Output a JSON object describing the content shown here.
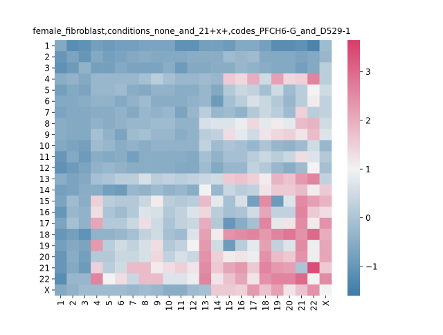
{
  "chart_data": {
    "type": "heatmap",
    "title": "female_fibroblast,conditions_none_and_21+x+,codes_PFCH6-G_and_D529-1",
    "xlabel": "",
    "ylabel": "",
    "x_categories": [
      "1",
      "2",
      "3",
      "4",
      "5",
      "6",
      "7",
      "8",
      "9",
      "10",
      "11",
      "12",
      "13",
      "14",
      "15",
      "16",
      "17",
      "18",
      "19",
      "20",
      "21",
      "22",
      "X"
    ],
    "y_categories": [
      "1",
      "2",
      "3",
      "4",
      "5",
      "6",
      "7",
      "8",
      "9",
      "10",
      "11",
      "12",
      "13",
      "14",
      "15",
      "16",
      "17",
      "18",
      "19",
      "20",
      "21",
      "22",
      "X"
    ],
    "colorbar": {
      "min": -1.6,
      "max": 3.65,
      "ticks": [
        -1,
        0,
        1,
        2,
        3
      ]
    },
    "colormap": {
      "low": "#3d7ba6",
      "mid": "#f2f2f2",
      "high": "#d63c6a"
    },
    "values": [
      [
        -0.6,
        -1.2,
        -1.1,
        -0.8,
        -0.9,
        -0.8,
        -0.8,
        -0.7,
        -0.7,
        -0.7,
        -1.1,
        -1.1,
        -0.8,
        -0.8,
        -0.9,
        -0.6,
        -0.6,
        -0.8,
        -1.2,
        -1.2,
        -1.1,
        -1.4,
        -0.2
      ],
      [
        -1.0,
        -0.7,
        -1.0,
        -0.6,
        -0.8,
        -0.7,
        -0.6,
        -0.5,
        -0.6,
        -0.6,
        -0.6,
        -0.5,
        -0.5,
        -0.5,
        -0.2,
        -0.3,
        -0.2,
        -0.6,
        -0.6,
        -0.6,
        -0.7,
        -0.6,
        -0.3
      ],
      [
        -1.1,
        -0.9,
        -0.4,
        -0.8,
        -0.8,
        -0.6,
        -0.7,
        -0.7,
        -0.7,
        -0.5,
        -0.9,
        -0.6,
        -0.6,
        -0.5,
        -0.5,
        -0.3,
        -0.4,
        -0.5,
        -0.6,
        -0.6,
        -0.8,
        -0.6,
        0.2
      ],
      [
        -0.5,
        -0.4,
        -0.6,
        -0.3,
        -0.3,
        -0.3,
        -0.3,
        -0.1,
        0.2,
        -0.1,
        -0.3,
        -0.3,
        -0.2,
        -0.3,
        1.6,
        1.4,
        2.0,
        0.5,
        2.2,
        1.4,
        1.5,
        2.6,
        0.2
      ],
      [
        -0.8,
        -0.6,
        -0.7,
        -0.3,
        -0.3,
        -0.2,
        -0.5,
        -0.6,
        -0.4,
        -0.4,
        -0.5,
        -0.5,
        -0.3,
        -0.6,
        0.1,
        0.4,
        0.3,
        -0.1,
        0.5,
        -0.2,
        0.2,
        1.0,
        0.5
      ],
      [
        -0.6,
        -0.6,
        -0.5,
        -0.4,
        -0.4,
        -0.6,
        -0.4,
        -0.2,
        -0.5,
        -0.5,
        -0.5,
        -0.4,
        -0.3,
        -0.9,
        -0.1,
        0.2,
        0.6,
        0.4,
        0.1,
        -0.3,
        0.2,
        1.1,
        0.3
      ],
      [
        -0.7,
        -0.6,
        -0.6,
        -0.5,
        -0.5,
        -0.4,
        -0.6,
        -0.3,
        -0.4,
        -0.3,
        -0.7,
        -0.3,
        0.2,
        -0.3,
        -0.2,
        -0.4,
        0.1,
        0.4,
        0.2,
        -0.2,
        1.5,
        0.2,
        0.3
      ],
      [
        -0.5,
        -0.6,
        -0.6,
        -0.4,
        -0.5,
        -0.4,
        -0.3,
        -0.3,
        -0.2,
        -0.2,
        -0.4,
        -0.4,
        0.6,
        0.7,
        0.7,
        0.9,
        1.4,
        0.8,
        1.1,
        0.8,
        1.8,
        1.9,
        0.5
      ],
      [
        -0.5,
        -0.6,
        -0.6,
        -0.1,
        -0.4,
        -0.7,
        -0.2,
        -0.1,
        -0.3,
        -0.3,
        -0.5,
        -0.4,
        0.2,
        0.3,
        1.3,
        0.8,
        0.5,
        1.2,
        1.4,
        1.5,
        1.2,
        1.8,
        0.7
      ],
      [
        -0.6,
        -0.7,
        -0.8,
        -0.2,
        -0.3,
        -0.5,
        -0.4,
        -0.5,
        -0.4,
        -0.4,
        -0.4,
        -0.4,
        0.3,
        -0.2,
        0.0,
        -0.1,
        -0.3,
        0.0,
        -0.3,
        -0.4,
        -0.2,
        0.5,
        -0.3
      ],
      [
        -1.0,
        -0.6,
        -0.9,
        -0.5,
        -0.6,
        -0.5,
        -0.8,
        -0.5,
        -0.5,
        -0.5,
        -0.5,
        -0.6,
        -0.1,
        -0.4,
        -0.1,
        -0.1,
        0.2,
        0.4,
        0.2,
        0.4,
        1.3,
        0.7,
        0.1
      ],
      [
        -1.1,
        -0.9,
        -0.7,
        -0.4,
        -0.3,
        -0.4,
        -0.5,
        -0.5,
        -0.5,
        -0.5,
        -0.6,
        -0.6,
        -0.2,
        -0.6,
        -0.3,
        -0.3,
        0.3,
        0.1,
        -0.3,
        -0.5,
        -0.2,
        1.0,
        -0.1
      ],
      [
        -0.5,
        -0.7,
        -0.6,
        -0.1,
        0.0,
        0.2,
        0.2,
        0.6,
        0.2,
        0.3,
        0.2,
        0.3,
        0.4,
        0.5,
        1.6,
        1.7,
        1.5,
        1.1,
        1.9,
        1.7,
        2.3,
        2.6,
        0.3
      ],
      [
        -0.8,
        -0.7,
        -0.5,
        -0.5,
        -0.8,
        -0.9,
        -0.3,
        -0.4,
        -0.2,
        -0.4,
        -0.3,
        -0.5,
        1.0,
        -0.3,
        0.4,
        0.2,
        0.3,
        1.2,
        1.6,
        1.6,
        1.8,
        1.1,
        1.6
      ],
      [
        -0.7,
        -0.2,
        -0.5,
        1.5,
        0.2,
        0.1,
        0.1,
        0.4,
        1.1,
        0.2,
        0.1,
        0.2,
        1.8,
        0.8,
        -0.1,
        0.6,
        -0.8,
        2.5,
        -0.9,
        0.7,
        2.5,
        2.2,
        1.9
      ],
      [
        -1.0,
        -0.3,
        -0.4,
        1.3,
        0.0,
        -0.2,
        0.1,
        0.7,
        0.6,
        0.1,
        0.3,
        0.7,
        1.4,
        0.2,
        -0.1,
        0.0,
        0.5,
        2.1,
        0.3,
        0.3,
        2.6,
        1.6,
        1.3
      ],
      [
        -0.7,
        -0.1,
        -0.4,
        2.1,
        0.1,
        0.1,
        0.4,
        1.3,
        0.5,
        0.0,
        0.3,
        0.4,
        2.0,
        0.1,
        -1.0,
        -0.5,
        -0.1,
        2.6,
        0.8,
        1.2,
        2.5,
        1.1,
        2.4
      ],
      [
        -1.0,
        -0.8,
        -1.1,
        -0.4,
        -0.4,
        -0.3,
        -0.1,
        0.3,
        0.5,
        -0.1,
        -0.2,
        0.7,
        2.2,
        1.1,
        2.4,
        2.5,
        2.6,
        2.3,
        2.6,
        2.8,
        2.4,
        3.0,
        2.0
      ],
      [
        -0.8,
        -0.6,
        -0.7,
        2.3,
        0.2,
        0.5,
        0.3,
        0.6,
        1.3,
        0.1,
        0.3,
        1.0,
        2.3,
        0.5,
        -0.9,
        0.2,
        0.8,
        2.2,
        0.3,
        0.7,
        2.5,
        0.9,
        2.1
      ],
      [
        -1.0,
        -0.5,
        -0.8,
        0.1,
        0.1,
        0.4,
        0.4,
        0.6,
        1.4,
        0.3,
        0.6,
        0.4,
        2.4,
        1.5,
        1.1,
        1.2,
        0.9,
        2.4,
        1.8,
        1.6,
        2.4,
        1.1,
        2.1
      ],
      [
        -1.0,
        -0.6,
        -0.9,
        1.5,
        0.2,
        0.5,
        1.8,
        1.8,
        1.1,
        1.3,
        1.5,
        1.2,
        2.5,
        1.6,
        2.1,
        2.3,
        1.6,
        2.6,
        2.3,
        2.2,
        0.0,
        3.4,
        1.6
      ],
      [
        -1.2,
        -0.3,
        -0.3,
        2.6,
        1.0,
        1.3,
        0.4,
        1.8,
        1.8,
        0.7,
        0.7,
        0.9,
        2.6,
        1.2,
        1.7,
        2.1,
        1.2,
        2.4,
        2.6,
        2.6,
        3.0,
        1.0,
        2.5
      ],
      [
        -0.6,
        -0.4,
        -0.2,
        -0.2,
        -0.2,
        -0.2,
        -0.3,
        -0.2,
        -0.3,
        -0.5,
        -0.5,
        -0.2,
        -0.1,
        1.6,
        1.6,
        1.5,
        2.3,
        1.7,
        2.2,
        1.2,
        1.7,
        2.4,
        1.0
      ]
    ]
  }
}
